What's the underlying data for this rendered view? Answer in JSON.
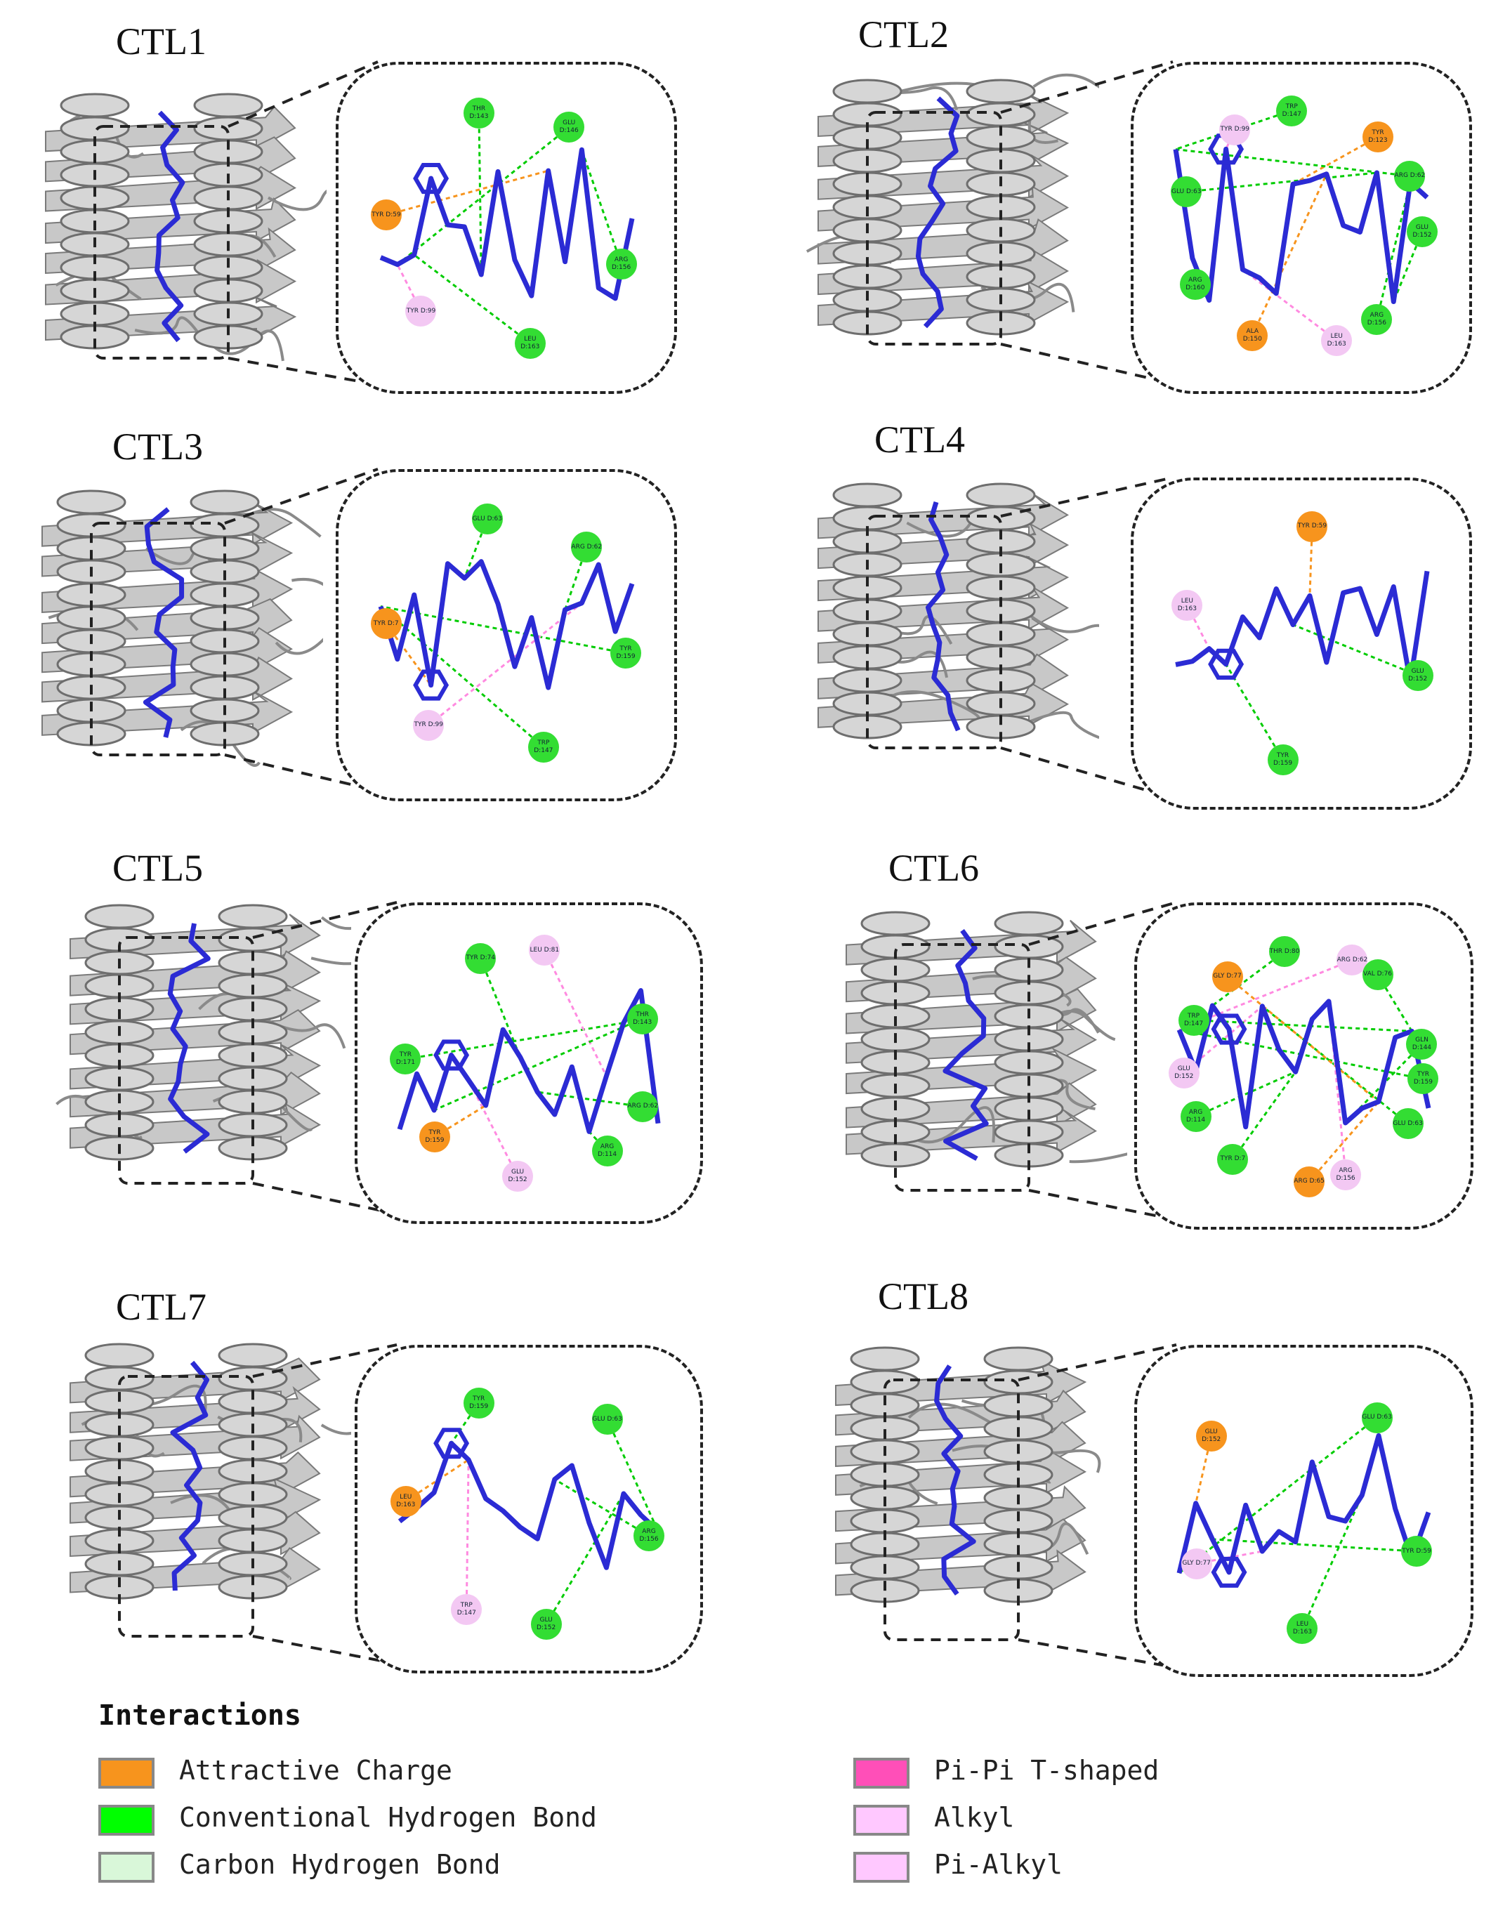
{
  "panels": [
    {
      "id": "CTL1",
      "title": "CTL1",
      "residues": [
        "ARG D:156",
        "LEU D:163",
        "TYR D:99",
        "TYR D:59",
        "THR D:143",
        "GLU D:146"
      ]
    },
    {
      "id": "CTL2",
      "title": "CTL2",
      "residues": [
        "GLU D:152",
        "ARG D:156",
        "LEU D:163",
        "ALA D:150",
        "ARG D:160",
        "GLU D:63",
        "TYR D:99",
        "TRP D:147",
        "TYR D:123",
        "ARG D:62"
      ]
    },
    {
      "id": "CTL3",
      "title": "CTL3",
      "residues": [
        "TYR D:159",
        "TRP D:147",
        "TYR D:99",
        "TYR D:7",
        "GLU D:63",
        "ARG D:62"
      ]
    },
    {
      "id": "CTL4",
      "title": "CTL4",
      "residues": [
        "GLU D:152",
        "TYR D:159",
        "LEU D:163",
        "TYR D:59"
      ]
    },
    {
      "id": "CTL5",
      "title": "CTL5",
      "residues": [
        "ARG D:62",
        "ARG D:114",
        "GLU D:152",
        "TYR D:159",
        "TYR D:171",
        "TYR D:74",
        "LEU D:81",
        "THR D:143"
      ]
    },
    {
      "id": "CTL6",
      "title": "CTL6",
      "residues": [
        "TYR D:159",
        "GLU D:63",
        "ARG D:156",
        "ARG D:65",
        "TYR D:7",
        "ARG D:114",
        "GLU D:152",
        "TRP D:147",
        "GLY D:77",
        "THR D:80",
        "ARG D:62",
        "VAL D:76",
        "GLN D:144"
      ]
    },
    {
      "id": "CTL7",
      "title": "CTL7",
      "residues": [
        "ARG D:156",
        "GLU D:152",
        "TRP D:147",
        "LEU D:163",
        "TYR D:159",
        "GLU D:63"
      ]
    },
    {
      "id": "CTL8",
      "title": "CTL8",
      "residues": [
        "TYR D:59",
        "LEU D:163",
        "GLY D:77",
        "GLU D:152",
        "GLU D:63"
      ]
    }
  ],
  "legend": {
    "title": "Interactions",
    "items": [
      {
        "label": "Attractive Charge",
        "color": "#F7941D"
      },
      {
        "label": "Conventional Hydrogen Bond",
        "color": "#00FF00"
      },
      {
        "label": "Carbon Hydrogen Bond",
        "color": "#D9F7D9"
      },
      {
        "label": "Pi-Pi T-shaped",
        "color": "#FF4FB8"
      },
      {
        "label": "Alkyl",
        "color": "#FFC8FF"
      },
      {
        "label": "Pi-Alkyl",
        "color": "#FFC8FF"
      }
    ]
  },
  "colors": {
    "ligand": "#2B2BD4",
    "protein": "#A9A9A9",
    "hbond": "#00CC00",
    "charge": "#F7941D",
    "alkyl": "#FF8AE0"
  }
}
